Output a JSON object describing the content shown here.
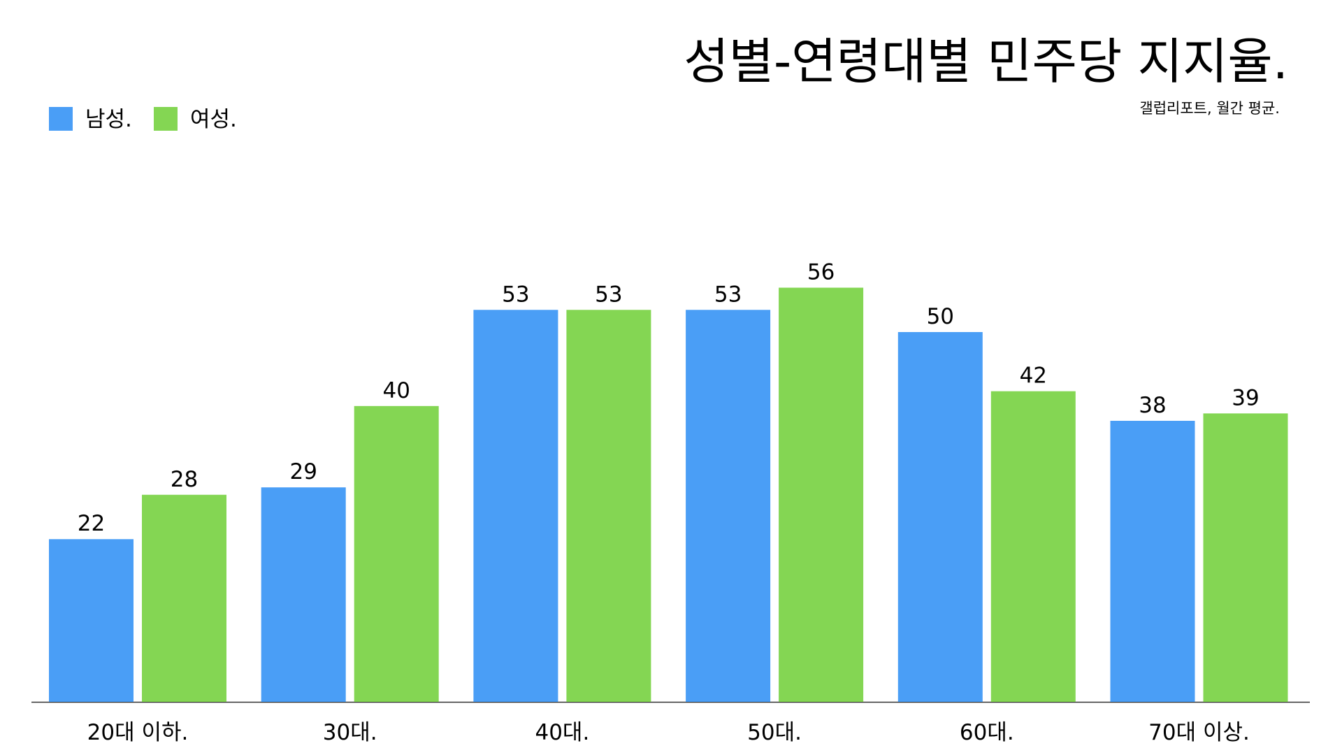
{
  "chart_data": {
    "type": "bar",
    "title": "성별-연령대별 민주당 지지율.",
    "subtitle": "갤럽리포트, 월간 평균.",
    "categories": [
      "20대 이하.",
      "30대.",
      "40대.",
      "50대.",
      "60대.",
      "70대 이상."
    ],
    "series": [
      {
        "name": "남성.",
        "color": "#4a9ef6",
        "values": [
          22,
          29,
          53,
          53,
          50,
          38
        ]
      },
      {
        "name": "여성.",
        "color": "#84d653",
        "values": [
          28,
          40,
          53,
          56,
          42,
          39
        ]
      }
    ],
    "legend": "top-left"
  }
}
